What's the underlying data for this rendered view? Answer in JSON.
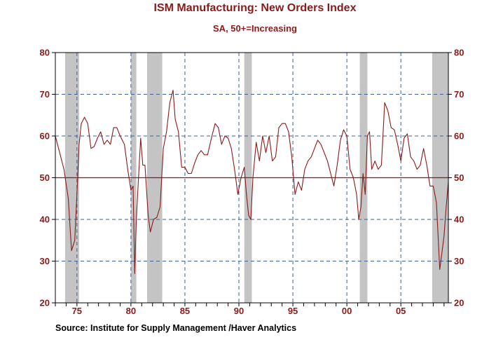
{
  "colors": {
    "title": "#8b1a1a",
    "axis_text": "#8b1a1a",
    "series": "#8b1a1a",
    "recession": "#c4c4c4",
    "grid": "#3a5f9a",
    "frame": "#000000",
    "text": "#000000"
  },
  "footer": {
    "source": "Source:  Institute for Supply Management /Haver Analytics"
  },
  "chart_data": {
    "type": "line",
    "title": "ISM Manufacturing: New Orders Index",
    "subtitle": "SA, 50+=Increasing",
    "xlim": [
      1973.0,
      2009.4
    ],
    "ylim": [
      20,
      80
    ],
    "y_ticks": [
      20,
      30,
      40,
      50,
      60,
      70,
      80
    ],
    "y_tick_labels": [
      "20",
      "30",
      "40",
      "50",
      "60",
      "70",
      "80"
    ],
    "x_label_ticks": [
      1975,
      1980,
      1985,
      1990,
      1995,
      2000,
      2005
    ],
    "x_tick_labels": [
      "75",
      "80",
      "85",
      "90",
      "95",
      "00",
      "05"
    ],
    "x_minor_tick_start": 1973,
    "x_minor_tick_end": 2009,
    "grid": "dashed",
    "reference_line": 50,
    "recessions": [
      [
        1973.9,
        1975.2
      ],
      [
        1980.0,
        1980.5
      ],
      [
        1981.5,
        1982.9
      ],
      [
        1990.5,
        1991.2
      ],
      [
        2001.2,
        2001.9
      ],
      [
        2007.9,
        2009.4
      ]
    ],
    "series": [
      {
        "name": "New Orders Index",
        "x": [
          1973.0,
          1973.4,
          1973.8,
          1974.2,
          1974.5,
          1974.8,
          1975.0,
          1975.2,
          1975.4,
          1975.7,
          1976.0,
          1976.3,
          1976.6,
          1976.9,
          1977.2,
          1977.5,
          1977.8,
          1978.1,
          1978.4,
          1978.7,
          1979.0,
          1979.4,
          1979.7,
          1980.0,
          1980.2,
          1980.35,
          1980.5,
          1980.7,
          1980.9,
          1981.1,
          1981.3,
          1981.6,
          1981.8,
          1982.1,
          1982.4,
          1982.7,
          1983.0,
          1983.3,
          1983.6,
          1983.9,
          1984.1,
          1984.4,
          1984.7,
          1985.0,
          1985.3,
          1985.6,
          1985.9,
          1986.2,
          1986.5,
          1986.8,
          1987.1,
          1987.5,
          1987.8,
          1988.1,
          1988.4,
          1988.7,
          1989.0,
          1989.3,
          1989.6,
          1989.9,
          1990.2,
          1990.5,
          1990.7,
          1990.9,
          1991.1,
          1991.3,
          1991.6,
          1991.9,
          1992.2,
          1992.5,
          1992.8,
          1993.1,
          1993.4,
          1993.7,
          1994.0,
          1994.3,
          1994.6,
          1994.9,
          1995.2,
          1995.5,
          1995.8,
          1996.1,
          1996.4,
          1996.7,
          1997.0,
          1997.3,
          1997.6,
          1997.9,
          1998.2,
          1998.5,
          1998.8,
          1999.1,
          1999.4,
          1999.7,
          2000.0,
          2000.3,
          2000.6,
          2000.9,
          2001.1,
          2001.3,
          2001.5,
          2001.7,
          2001.9,
          2002.1,
          2002.3,
          2002.6,
          2002.9,
          2003.2,
          2003.5,
          2003.8,
          2004.1,
          2004.4,
          2004.7,
          2005.0,
          2005.3,
          2005.6,
          2005.9,
          2006.2,
          2006.5,
          2006.8,
          2007.1,
          2007.4,
          2007.7,
          2008.0,
          2008.3,
          2008.6,
          2008.8,
          2009.0,
          2009.2,
          2009.4
        ],
        "values": [
          60.0,
          56.0,
          52.0,
          45.0,
          32.5,
          35.0,
          46.0,
          58.0,
          63.0,
          64.5,
          63.0,
          57.0,
          57.5,
          59.5,
          61.0,
          58.0,
          59.0,
          58.0,
          62.0,
          62.0,
          60.0,
          58.0,
          52.0,
          47.0,
          48.0,
          27.0,
          40.0,
          50.0,
          59.5,
          53.0,
          53.0,
          41.0,
          37.0,
          40.0,
          40.5,
          43.0,
          57.0,
          61.0,
          68.0,
          71.0,
          64.0,
          61.0,
          52.5,
          52.5,
          51.0,
          51.0,
          53.5,
          55.5,
          56.5,
          55.5,
          55.5,
          60.0,
          63.0,
          62.0,
          58.0,
          60.0,
          59.5,
          57.0,
          52.0,
          46.0,
          50.0,
          52.5,
          46.0,
          41.0,
          40.0,
          50.0,
          58.5,
          54.0,
          60.0,
          56.0,
          60.0,
          54.0,
          55.0,
          62.0,
          63.0,
          63.0,
          61.0,
          55.0,
          46.0,
          49.0,
          47.0,
          52.0,
          54.0,
          55.0,
          57.0,
          59.0,
          58.0,
          56.0,
          54.0,
          51.0,
          48.0,
          53.0,
          59.0,
          61.5,
          60.0,
          52.0,
          50.0,
          46.0,
          40.0,
          43.0,
          51.0,
          46.0,
          60.0,
          61.0,
          52.0,
          54.0,
          52.0,
          53.0,
          68.0,
          66.0,
          62.0,
          61.5,
          58.0,
          54.0,
          59.5,
          60.5,
          55.0,
          54.0,
          52.0,
          53.0,
          57.0,
          53.0,
          48.0,
          48.0,
          44.0,
          28.0,
          32.0,
          36.0,
          43.0,
          49.0
        ]
      }
    ]
  }
}
